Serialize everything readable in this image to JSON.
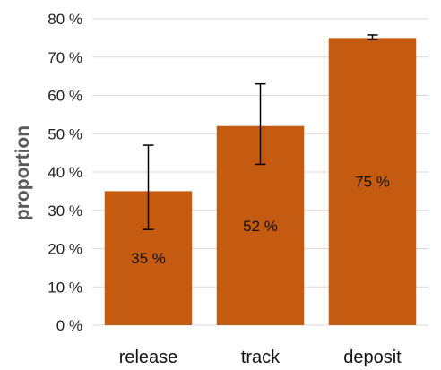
{
  "chart_data": {
    "type": "bar",
    "title": "",
    "xlabel": "",
    "ylabel": "proportion",
    "ylim": [
      0,
      80
    ],
    "yticks": [
      0,
      10,
      20,
      30,
      40,
      50,
      60,
      70,
      80
    ],
    "ytick_suffix": " %",
    "grid": true,
    "categories": [
      "release",
      "track",
      "deposit"
    ],
    "values": [
      35,
      52,
      75
    ],
    "data_labels": [
      "35 %",
      "52 %",
      "75 %"
    ],
    "error_bars": [
      {
        "low": 25,
        "high": 47
      },
      {
        "low": 42,
        "high": 63
      },
      {
        "low": 74.6,
        "high": 75.8
      }
    ],
    "bar_color": "#c55a11"
  }
}
